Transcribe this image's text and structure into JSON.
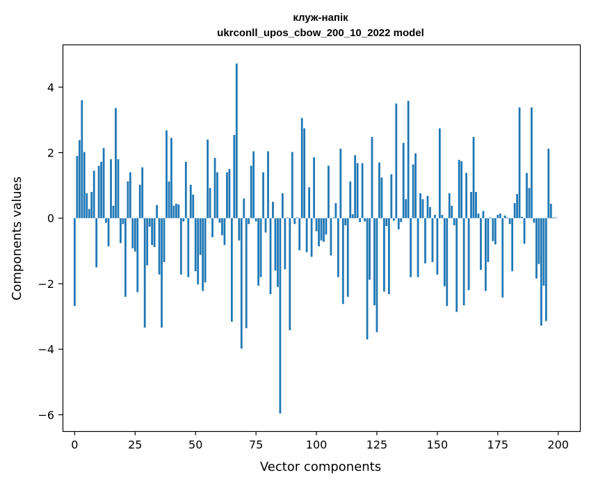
{
  "chart_data": {
    "type": "bar",
    "title_line1": "клуж-напік",
    "title_line2": "ukrconll_upos_cbow_200_10_2022 model",
    "xlabel": "Vector components",
    "ylabel": "Components values",
    "xlim": [
      -5,
      209
    ],
    "ylim": [
      -6.5,
      5.3
    ],
    "xticks": [
      0,
      25,
      50,
      75,
      100,
      125,
      150,
      175,
      200
    ],
    "yticks": [
      -6,
      -4,
      -2,
      0,
      2,
      4
    ],
    "ytick_labels": [
      "−6",
      "−4",
      "−2",
      "0",
      "2",
      "4"
    ],
    "bar_color": "#1f77b4",
    "values": [
      -2.68,
      1.9,
      2.38,
      3.6,
      2.02,
      0.76,
      0.28,
      0.8,
      1.45,
      -1.5,
      1.6,
      1.72,
      2.14,
      -0.14,
      -0.86,
      1.8,
      0.38,
      3.36,
      1.8,
      -0.76,
      -0.18,
      -2.4,
      1.12,
      1.4,
      -0.92,
      -1.02,
      -2.26,
      1.02,
      1.55,
      -3.34,
      -1.44,
      -0.26,
      -0.82,
      -0.88,
      0.4,
      -1.72,
      -3.34,
      -1.34,
      2.68,
      1.12,
      2.45,
      0.38,
      0.44,
      0.42,
      -1.72,
      -0.1,
      1.72,
      -1.8,
      1.02,
      0.72,
      -1.62,
      -2.02,
      -1.12,
      -2.22,
      -1.96,
      2.4,
      0.92,
      -0.58,
      1.84,
      1.4,
      -0.14,
      -0.52,
      -0.82,
      1.4,
      1.5,
      -3.16,
      2.54,
      4.72,
      -0.68,
      -3.98,
      0.6,
      -3.36,
      -0.18,
      1.6,
      2.04,
      -0.1,
      -2.06,
      -1.8,
      1.4,
      -0.44,
      2.04,
      -2.32,
      0.5,
      -1.6,
      -2.1,
      -5.96,
      0.76,
      -1.56,
      0.02,
      -3.42,
      2.02,
      -0.18,
      0.02,
      -0.98,
      3.06,
      2.74,
      -1.04,
      0.94,
      -1.18,
      1.86,
      -0.4,
      -0.86,
      -0.68,
      -0.72,
      -0.5,
      1.6,
      -1.14,
      0.02,
      0.46,
      -1.8,
      2.12,
      -2.62,
      -0.22,
      -2.4,
      1.12,
      0.12,
      1.92,
      1.68,
      -0.12,
      1.68,
      -0.1,
      -3.7,
      -1.88,
      2.48,
      -2.66,
      -3.48,
      1.7,
      1.24,
      -2.24,
      -0.24,
      -2.32,
      1.34,
      -0.08,
      3.5,
      -0.34,
      -0.12,
      2.3,
      0.58,
      3.58,
      -1.8,
      1.64,
      1.98,
      -1.8,
      0.76,
      0.58,
      -1.38,
      0.68,
      0.34,
      -1.34,
      0.1,
      -1.72,
      2.74,
      0.1,
      -2.08,
      -2.68,
      0.76,
      0.38,
      -0.22,
      -2.86,
      1.78,
      1.74,
      -2.66,
      1.38,
      -2.2,
      0.8,
      2.48,
      0.8,
      0.14,
      -1.58,
      0.22,
      -2.22,
      -1.34,
      0.02,
      -0.7,
      -0.8,
      0.1,
      0.14,
      -2.42,
      0.08,
      0.02,
      -0.18,
      -1.62,
      0.46,
      0.74,
      3.38,
      0.04,
      -0.78,
      1.38,
      0.92,
      3.38,
      -0.14,
      -1.84,
      -1.4,
      -3.28,
      -2.06,
      -3.14,
      2.12,
      0.44,
      0.02,
      0.02
    ]
  }
}
